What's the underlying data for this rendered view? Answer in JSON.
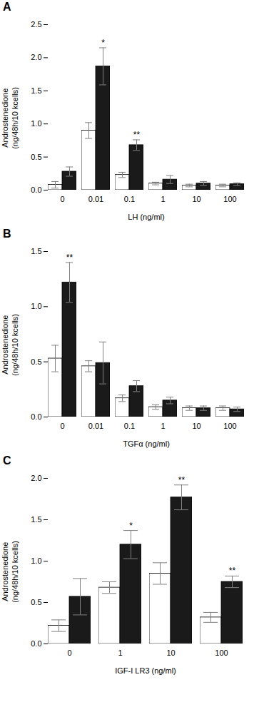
{
  "chart_data": [
    {
      "type": "bar",
      "title": "A",
      "xlabel": "LH (ng/ml)",
      "ylabel": "Androstenedione\n(ng/48h/10 kcells)",
      "ylim": [
        0,
        2.5
      ],
      "yticks": [
        {
          "value": 0,
          "label": "0.0"
        },
        0.5,
        {
          "value": 1.0,
          "label": "1.0"
        },
        1.5,
        {
          "value": 2.0,
          "label": "2.0"
        },
        2.5
      ],
      "grid": false,
      "categories": [
        "0",
        "0.01",
        "0.1",
        "1",
        "10",
        "100"
      ],
      "series": [
        {
          "color": "#ffffff",
          "values": [
            0.08,
            0.9,
            0.23,
            0.1,
            0.07,
            0.07
          ],
          "errors": [
            0.05,
            0.12,
            0.04,
            0.02,
            0.02,
            0.02
          ]
        },
        {
          "color": "#1a1a1a",
          "values": [
            0.28,
            1.87,
            0.68,
            0.16,
            0.1,
            0.09
          ],
          "errors": [
            0.07,
            0.28,
            0.08,
            0.06,
            0.03,
            0.02
          ]
        }
      ],
      "annotations": [
        {
          "category": "0.01",
          "series": 1,
          "text": "*"
        },
        {
          "category": "0.1",
          "series": 1,
          "text": "**"
        }
      ]
    },
    {
      "type": "bar",
      "title": "B",
      "xlabel": "TGFα (ng/ml)",
      "ylabel": "Androstenedione\n(ng/48h/10 kcells)",
      "ylim": [
        0,
        1.5
      ],
      "yticks": [
        {
          "value": 0,
          "label": "0.0"
        },
        0.5,
        {
          "value": 1.0,
          "label": "1.0"
        },
        1.5
      ],
      "grid": false,
      "categories": [
        "0",
        "0.01",
        "0.1",
        "1",
        "10",
        "100"
      ],
      "series": [
        {
          "color": "#ffffff",
          "values": [
            0.53,
            0.46,
            0.17,
            0.09,
            0.08,
            0.08
          ],
          "errors": [
            0.12,
            0.05,
            0.03,
            0.02,
            0.02,
            0.02
          ]
        },
        {
          "color": "#1a1a1a",
          "values": [
            1.22,
            0.49,
            0.28,
            0.15,
            0.08,
            0.07
          ],
          "errors": [
            0.18,
            0.19,
            0.05,
            0.03,
            0.02,
            0.02
          ]
        }
      ],
      "annotations": [
        {
          "category": "0",
          "series": 1,
          "text": "**"
        }
      ]
    },
    {
      "type": "bar",
      "title": "C",
      "xlabel": "IGF-I LR3 (ng/ml)",
      "ylabel": "Androstenedione\n(ng/48h/10 kcells)",
      "ylim": [
        0,
        2.0
      ],
      "yticks": [
        {
          "value": 0,
          "label": "0.0"
        },
        0.5,
        {
          "value": 1.0,
          "label": "1.0"
        },
        1.5,
        {
          "value": 2.0,
          "label": "2.0"
        }
      ],
      "grid": false,
      "categories": [
        "0",
        "1",
        "10",
        "100"
      ],
      "series": [
        {
          "color": "#ffffff",
          "values": [
            0.22,
            0.68,
            0.85,
            0.32
          ],
          "errors": [
            0.07,
            0.07,
            0.13,
            0.06
          ]
        },
        {
          "color": "#1a1a1a",
          "values": [
            0.57,
            1.2,
            1.77,
            0.75
          ],
          "errors": [
            0.22,
            0.17,
            0.15,
            0.07
          ]
        }
      ],
      "annotations": [
        {
          "category": "1",
          "series": 1,
          "text": "*"
        },
        {
          "category": "10",
          "series": 1,
          "text": "**"
        },
        {
          "category": "100",
          "series": 1,
          "text": "**"
        }
      ]
    }
  ]
}
